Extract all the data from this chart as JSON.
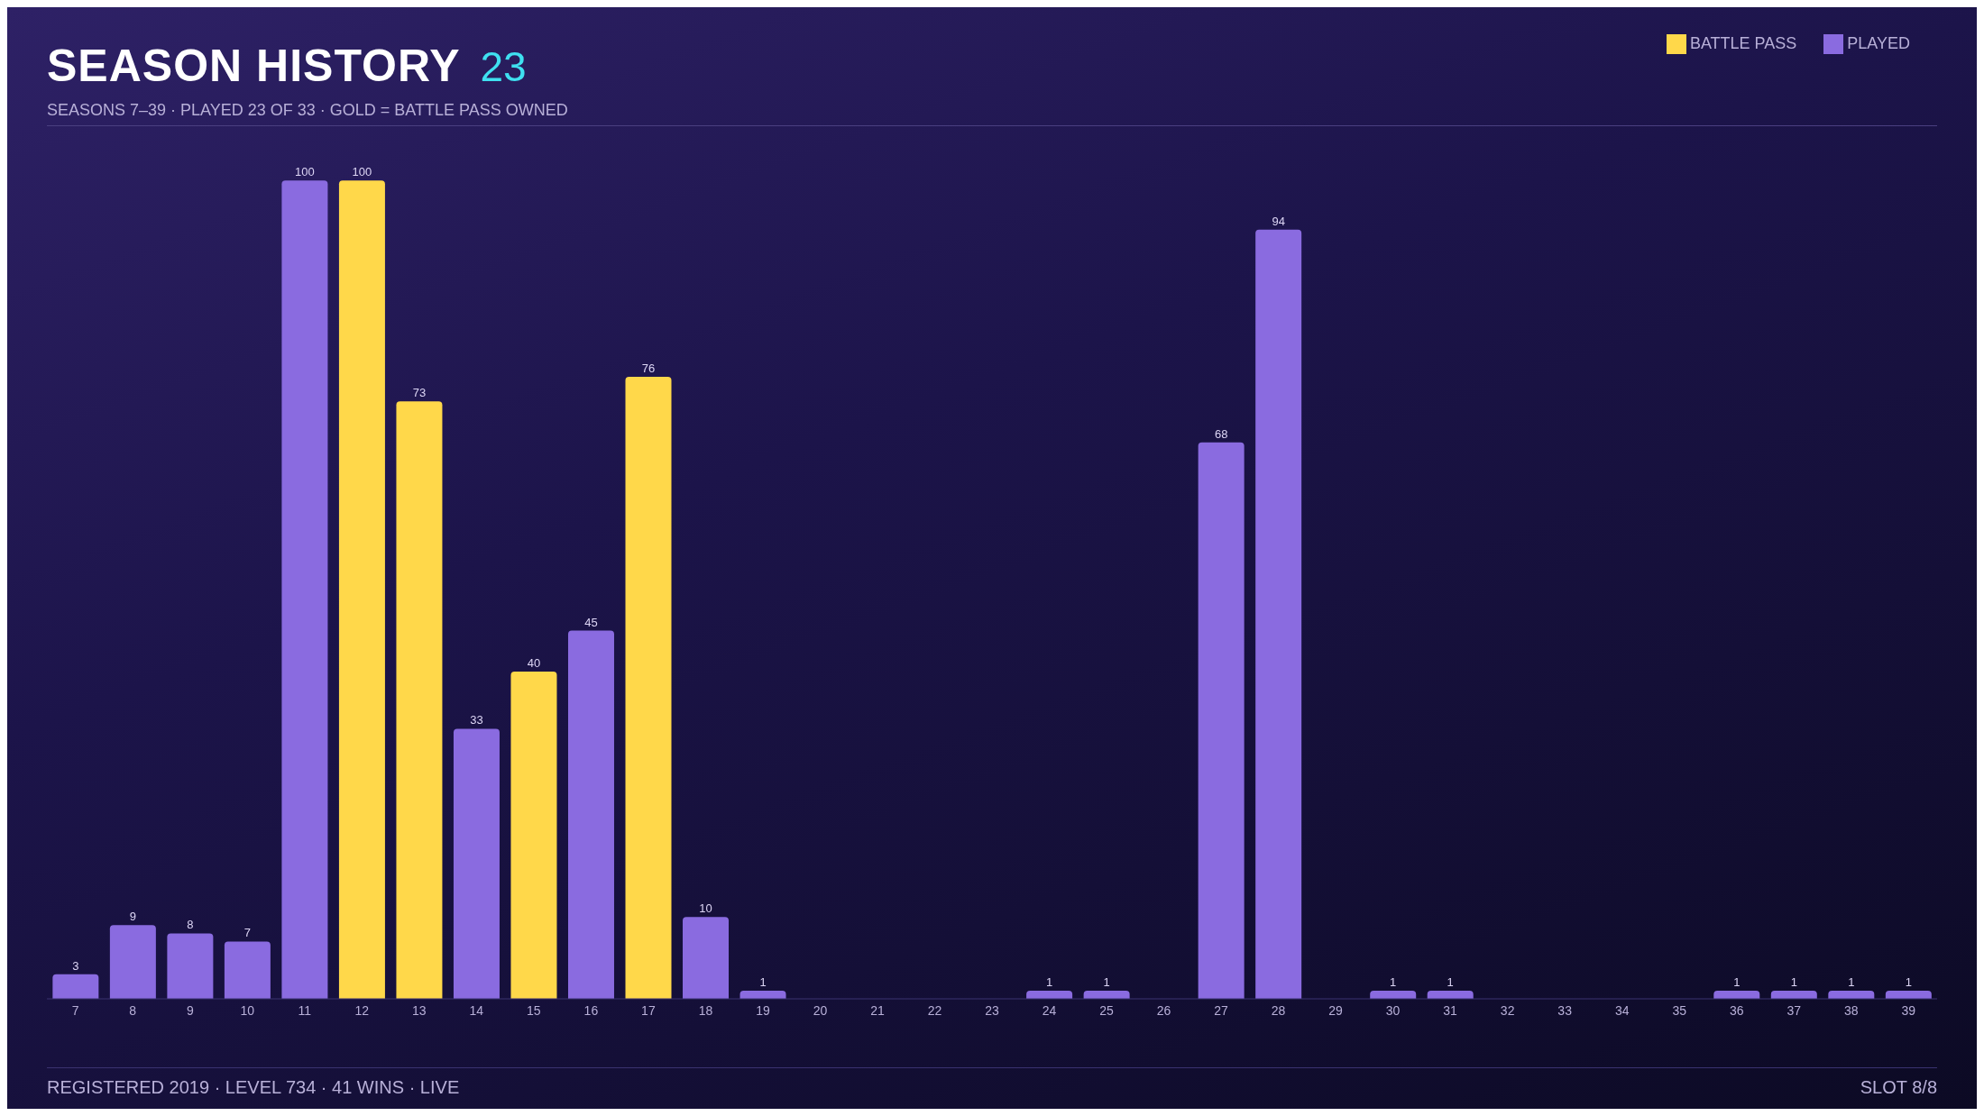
{
  "chart_data": {
    "type": "bar",
    "title": "SEASON HISTORY",
    "subtitle": "SEASONS 7–39 · PLAYED 23 OF 33 · GOLD = BATTLE PASS OWNED",
    "annotations": [
      "23",
      "REGISTERED 2019 · LEVEL 734 · 41 WINS · LIVE",
      "SLOT 8/8"
    ],
    "categories": [
      "7",
      "8",
      "9",
      "10",
      "11",
      "12",
      "13",
      "14",
      "15",
      "16",
      "17",
      "18",
      "19",
      "20",
      "21",
      "22",
      "23",
      "24",
      "25",
      "26",
      "27",
      "28",
      "29",
      "30",
      "31",
      "32",
      "33",
      "34",
      "35",
      "36",
      "37",
      "38",
      "39"
    ],
    "stacked": true,
    "data_labels": true,
    "legend": "top right",
    "series": [
      {
        "name": "BATTLE PASS",
        "color": "#ffd84a",
        "values": [
          null,
          null,
          null,
          null,
          null,
          100,
          73,
          null,
          40,
          null,
          76,
          null,
          null,
          null,
          null,
          null,
          null,
          null,
          null,
          null,
          null,
          null,
          null,
          null,
          null,
          null,
          null,
          null,
          null,
          null,
          null,
          null,
          null
        ]
      },
      {
        "name": "PLAYED",
        "color": "#8a6be0",
        "values": [
          3,
          9,
          8,
          7,
          100,
          null,
          null,
          33,
          null,
          45,
          null,
          10,
          1,
          null,
          null,
          null,
          null,
          1,
          1,
          null,
          68,
          94,
          null,
          1,
          1,
          null,
          null,
          null,
          null,
          1,
          1,
          1,
          1
        ]
      }
    ]
  }
}
